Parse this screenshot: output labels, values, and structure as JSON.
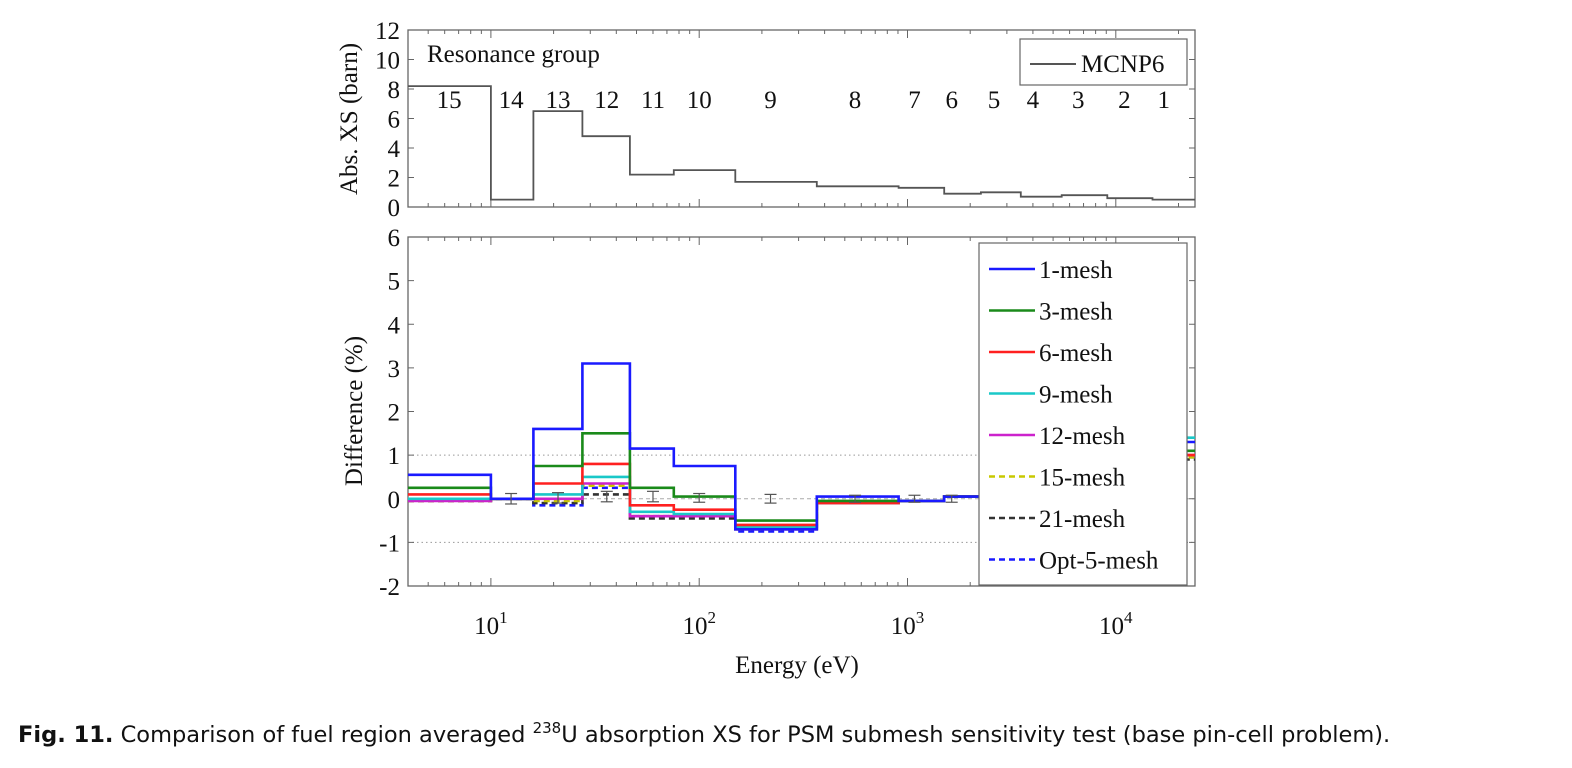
{
  "figure": {
    "caption": {
      "label": "Fig. 11.",
      "text_before": "Comparison of fuel region averaged",
      "isotope_mass": "238",
      "text_after": "U absorption XS for PSM submesh sensitivity test (base pin-cell problem)."
    }
  },
  "chart_data": [
    {
      "type": "line",
      "subtype": "step",
      "ylabel": "Abs. XS (barn)",
      "xscale": "log",
      "xlim": [
        4,
        24000
      ],
      "ylim": [
        0,
        12
      ],
      "yticks": [
        0,
        2,
        4,
        6,
        8,
        10,
        12
      ],
      "annotation": "Resonance group",
      "legend": {
        "position": "top-right",
        "entries": [
          "MCNP6"
        ]
      },
      "group_labels": [
        {
          "label": "15",
          "x": 6.3
        },
        {
          "label": "14",
          "x": 12.5
        },
        {
          "label": "13",
          "x": 21
        },
        {
          "label": "12",
          "x": 36
        },
        {
          "label": "11",
          "x": 60
        },
        {
          "label": "10",
          "x": 100
        },
        {
          "label": "9",
          "x": 220
        },
        {
          "label": "8",
          "x": 560
        },
        {
          "label": "7",
          "x": 1080
        },
        {
          "label": "6",
          "x": 1630
        },
        {
          "label": "5",
          "x": 2600
        },
        {
          "label": "4",
          "x": 4000
        },
        {
          "label": "3",
          "x": 6600
        },
        {
          "label": "2",
          "x": 11000
        },
        {
          "label": "1",
          "x": 17000
        }
      ],
      "series": [
        {
          "name": "MCNP6",
          "color": "#555555",
          "edges": [
            4,
            10,
            16,
            27.5,
            46.5,
            75.5,
            149,
            367,
            906,
            1500,
            2250,
            3500,
            5500,
            9100,
            15000,
            24000
          ],
          "values": [
            8.2,
            0.5,
            6.5,
            4.8,
            2.2,
            2.5,
            1.7,
            1.4,
            1.3,
            0.9,
            1.0,
            0.7,
            0.8,
            0.6,
            0.5
          ]
        }
      ]
    },
    {
      "type": "line",
      "subtype": "step",
      "xlabel": "Energy (eV)",
      "ylabel": "Difference (%)",
      "xscale": "log",
      "xlim": [
        4,
        24000
      ],
      "ylim": [
        -2,
        6
      ],
      "yticks": [
        -2,
        -1,
        0,
        1,
        2,
        3,
        4,
        5,
        6
      ],
      "xticks": [
        {
          "value": 10,
          "base": "10",
          "exp": "1"
        },
        {
          "value": 100,
          "base": "10",
          "exp": "2"
        },
        {
          "value": 1000,
          "base": "10",
          "exp": "3"
        },
        {
          "value": 10000,
          "base": "10",
          "exp": "4"
        }
      ],
      "reference_lines": [
        -1,
        1
      ],
      "legend": {
        "position": "top-right"
      },
      "edges": [
        4,
        10,
        16,
        27.5,
        46.5,
        75.5,
        149,
        367,
        906,
        1500,
        2250,
        3500,
        5500,
        9100,
        15000,
        24000
      ],
      "series": [
        {
          "name": "1-mesh",
          "color": "#1a1aff",
          "dash": "solid",
          "values": [
            0.55,
            0.0,
            1.6,
            3.1,
            1.15,
            0.75,
            -0.7,
            0.05,
            -0.05,
            0.05,
            0.0,
            0.0,
            0.0,
            0.0,
            1.3
          ]
        },
        {
          "name": "3-mesh",
          "color": "#1a8a1a",
          "dash": "solid",
          "values": [
            0.25,
            0.0,
            0.75,
            1.5,
            0.25,
            0.05,
            -0.5,
            -0.05,
            -0.05,
            0.05,
            0.0,
            0.0,
            0.0,
            0.0,
            1.1
          ]
        },
        {
          "name": "6-mesh",
          "color": "#ff2020",
          "dash": "solid",
          "values": [
            0.1,
            0.0,
            0.35,
            0.8,
            -0.15,
            -0.25,
            -0.6,
            -0.1,
            -0.05,
            0.05,
            0.0,
            0.0,
            0.0,
            0.0,
            1.0
          ]
        },
        {
          "name": "9-mesh",
          "color": "#1ac8c8",
          "dash": "solid",
          "values": [
            0.0,
            0.0,
            0.1,
            0.5,
            -0.3,
            -0.35,
            -0.65,
            -0.1,
            -0.05,
            0.05,
            0.0,
            0.0,
            0.0,
            0.0,
            1.4
          ]
        },
        {
          "name": "12-mesh",
          "color": "#cc22cc",
          "dash": "solid",
          "values": [
            -0.05,
            0.0,
            0.0,
            0.35,
            -0.4,
            -0.4,
            -0.7,
            -0.1,
            -0.05,
            0.05,
            0.0,
            0.0,
            0.0,
            0.0,
            1.0
          ]
        },
        {
          "name": "15-mesh",
          "color": "#c8c800",
          "dash": "dashed",
          "values": [
            -0.05,
            0.0,
            -0.05,
            0.3,
            -0.4,
            -0.4,
            -0.7,
            -0.1,
            -0.05,
            0.05,
            0.0,
            0.0,
            0.0,
            0.0,
            0.95
          ]
        },
        {
          "name": "21-mesh",
          "color": "#333333",
          "dash": "dashed",
          "values": [
            -0.05,
            0.0,
            -0.1,
            0.1,
            -0.45,
            -0.45,
            -0.7,
            -0.1,
            -0.05,
            0.05,
            0.0,
            0.0,
            0.0,
            0.0,
            0.9
          ]
        },
        {
          "name": "Opt-5-mesh",
          "color": "#1a1aff",
          "dash": "dashed",
          "values": [
            -0.05,
            0.0,
            -0.15,
            0.25,
            -0.4,
            -0.4,
            -0.75,
            -0.1,
            -0.05,
            0.05,
            0.0,
            0.0,
            0.0,
            0.0,
            0.95
          ]
        }
      ],
      "error_bars": [
        {
          "x": 12.5,
          "value": 0.0,
          "err": 0.12
        },
        {
          "x": 21,
          "value": 0.02,
          "err": 0.12
        },
        {
          "x": 36,
          "value": 0.05,
          "err": 0.12
        },
        {
          "x": 60,
          "value": 0.05,
          "err": 0.12
        },
        {
          "x": 100,
          "value": 0.02,
          "err": 0.1
        },
        {
          "x": 220,
          "value": 0.0,
          "err": 0.1
        },
        {
          "x": 560,
          "value": 0.0,
          "err": 0.08
        },
        {
          "x": 1080,
          "value": 0.0,
          "err": 0.08
        },
        {
          "x": 1630,
          "value": 0.0,
          "err": 0.08
        }
      ]
    }
  ]
}
